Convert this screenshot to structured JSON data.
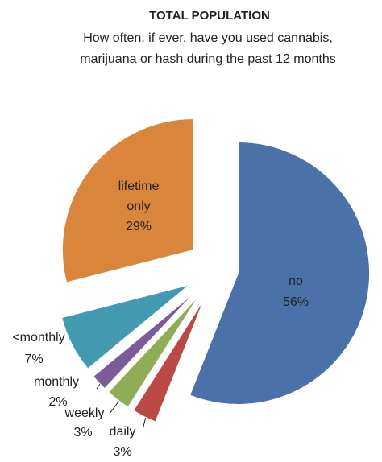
{
  "chart_data": {
    "type": "pie",
    "title": "TOTAL POPULATION",
    "subtitle": [
      "How often, if ever, have you used cannabis,",
      "marijuana or hash during the past 12 months"
    ],
    "categories": [
      "no",
      "daily",
      "weekly",
      "monthly",
      "<monthly",
      "lifetime only"
    ],
    "values": [
      56,
      3,
      3,
      2,
      7,
      29
    ],
    "value_labels": [
      "56%",
      "3%",
      "3%",
      "2%",
      "7%",
      "29%"
    ],
    "colors": [
      "#4a72a8",
      "#bb4a47",
      "#8fad55",
      "#7a5c9a",
      "#4299b0",
      "#d9853b"
    ]
  }
}
